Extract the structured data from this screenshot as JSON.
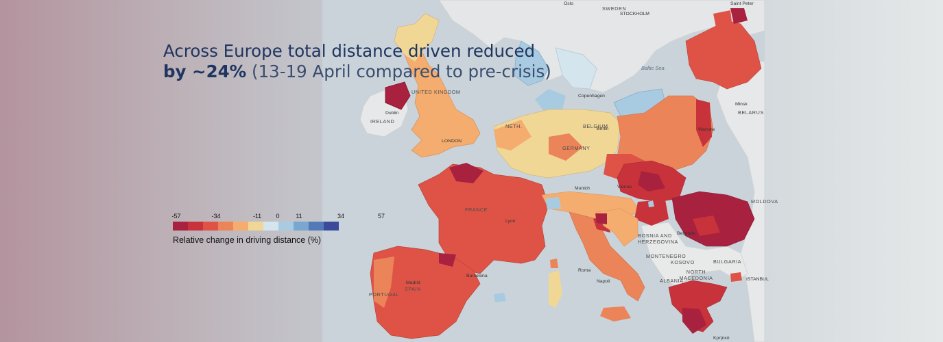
{
  "title": {
    "line1": "Across Europe total distance driven reduced",
    "line2_bold": "by ~24%",
    "line2_light": " (13-19 April compared to pre-crisis)"
  },
  "legend": {
    "ticks": [
      "-57",
      "-34",
      "-11",
      "0",
      "11",
      "34",
      "57"
    ],
    "caption": "Relative change in driving distance (%)",
    "colors": [
      "#a8213f",
      "#c8323a",
      "#df5347",
      "#ec8459",
      "#f4ad6e",
      "#f0d796",
      "#d5e5ed",
      "#a9cbe1",
      "#7aa7cf",
      "#5479b7",
      "#3d4a9b"
    ]
  },
  "map": {
    "country_labels": [
      "SWEDEN",
      "UNITED KINGDOM",
      "IRELAND",
      "BELARUS",
      "BOSNIA AND HERZEGOVINA",
      "MONTENEGRO",
      "KOSOVO",
      "BULGARIA",
      "NORTH MACEDONIA",
      "ALBANIA",
      "MOLDOVA",
      "FRANCE",
      "GERMANY",
      "BELGIUM",
      "NETH.",
      "SPAIN",
      "PORTUGAL"
    ],
    "city_labels": [
      "Oslo",
      "STOCKHOLM",
      "Saint Peter",
      "Copenhagen",
      "Dublin",
      "LONDON",
      "Minsk",
      "Warsaw",
      "Lyon",
      "Barcelona",
      "Madrid",
      "Roma",
      "Napoli",
      "Belgrade",
      "ISTANBUL",
      "Vienna",
      "Munich",
      "Berlin",
      "Κρητικό"
    ],
    "sea_labels": [
      "Baltic Sea"
    ]
  }
}
